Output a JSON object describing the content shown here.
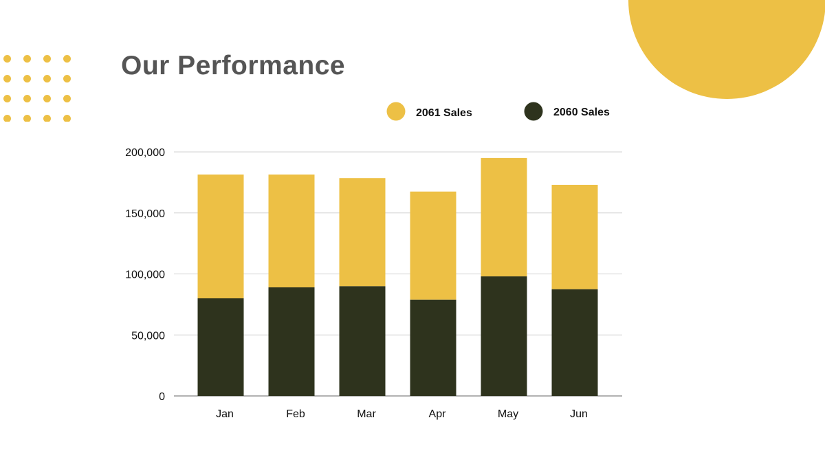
{
  "title": "Our Performance",
  "colors": {
    "series_2061": "#EDC045",
    "series_2060": "#2E331D",
    "title": "#555555"
  },
  "chart_data": {
    "type": "bar",
    "stacked": true,
    "title": "Our Performance",
    "categories": [
      "Jan",
      "Feb",
      "Mar",
      "Apr",
      "May",
      "Jun"
    ],
    "series": [
      {
        "name": "2060 Sales",
        "values": [
          80000,
          89000,
          90000,
          79000,
          98000,
          87500
        ]
      },
      {
        "name": "2061 Sales",
        "values": [
          101500,
          92500,
          88500,
          88500,
          97000,
          85500
        ]
      }
    ],
    "yticks": [
      "0",
      "50,000",
      "100,000",
      "150,000",
      "200,000"
    ],
    "ytick_values": [
      0,
      50000,
      100000,
      150000,
      200000
    ],
    "ylim": [
      0,
      200000
    ],
    "xlabel": "",
    "ylabel": "",
    "grid": true,
    "legend": [
      {
        "label": "2061 Sales"
      },
      {
        "label": "2060 Sales"
      }
    ],
    "legend_position": "top-right"
  }
}
